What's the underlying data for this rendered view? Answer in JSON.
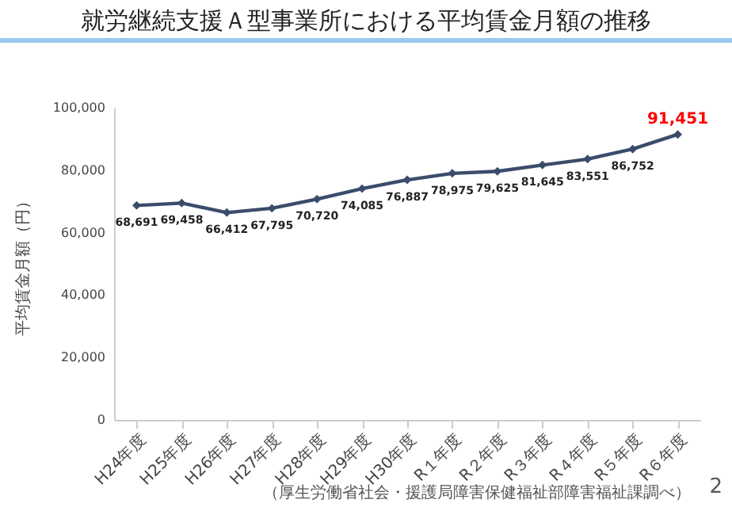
{
  "chart_data": {
    "type": "line",
    "title": "就労継続支援Ａ型事業所における平均賃金月額の推移",
    "ylabel": "平均賃金月額（円）",
    "categories": [
      "H24年度",
      "H25年度",
      "H26年度",
      "H27年度",
      "H28年度",
      "H29年度",
      "H30年度",
      "R１年度",
      "R２年度",
      "R３年度",
      "R４年度",
      "R５年度",
      "R６年度"
    ],
    "series": [
      {
        "color": "#3b4c6b",
        "values": [
          68691,
          69458,
          66412,
          67795,
          70720,
          74085,
          76887,
          78975,
          79625,
          81645,
          83551,
          86752,
          91451
        ],
        "value_labels": [
          "68,691",
          "69,458",
          "66,412",
          "67,795",
          "70,720",
          "74,085",
          "76,887",
          "78,975",
          "79,625",
          "81,645",
          "83,551",
          "86,752",
          null
        ]
      }
    ],
    "ylim": [
      0,
      100000
    ],
    "yticks": [
      {
        "value": 0,
        "label": "0"
      },
      {
        "value": 20000,
        "label": "20,000"
      },
      {
        "value": 40000,
        "label": "40,000"
      },
      {
        "value": 60000,
        "label": "60,000"
      },
      {
        "value": 80000,
        "label": "80,000"
      },
      {
        "value": 100000,
        "label": "100,000"
      }
    ],
    "grid": false,
    "marker": "diamond",
    "line_style": "solid",
    "annotations": [
      {
        "text": "91,451",
        "x": "R６年度",
        "y": 91451
      },
      "（厚生労働省社会・援護局障害保健福祉部障害福祉課調べ）",
      "2"
    ]
  }
}
